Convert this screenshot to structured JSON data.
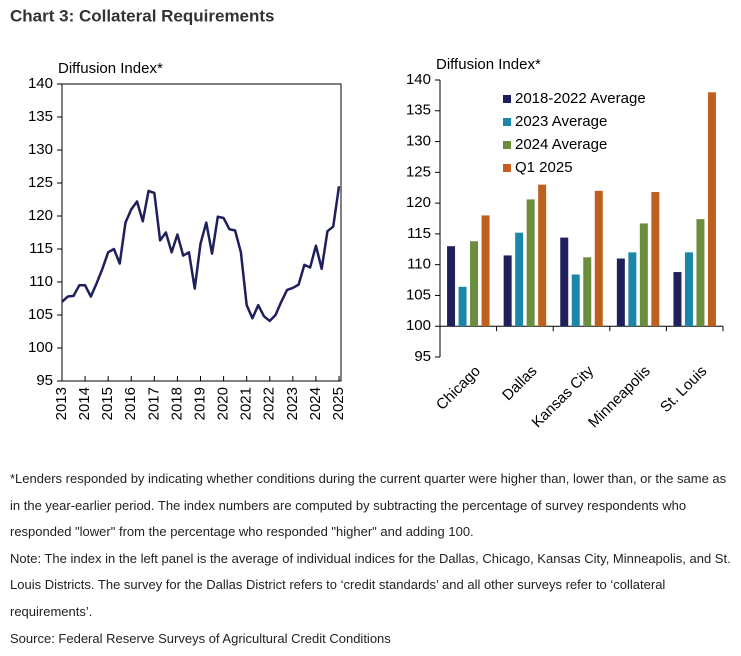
{
  "title": "Chart 3: Collateral Requirements",
  "chart_data": [
    {
      "type": "line",
      "ylabel": "Diffusion Index*",
      "color": "#1f1f5c",
      "x": [
        2013,
        2013.25,
        2013.5,
        2013.75,
        2014,
        2014.25,
        2014.5,
        2014.75,
        2015,
        2015.25,
        2015.5,
        2015.75,
        2016,
        2016.25,
        2016.5,
        2016.75,
        2017,
        2017.25,
        2017.5,
        2017.75,
        2018,
        2018.25,
        2018.5,
        2018.75,
        2019,
        2019.25,
        2019.5,
        2019.75,
        2020,
        2020.25,
        2020.5,
        2020.75,
        2021,
        2021.25,
        2021.5,
        2021.75,
        2022,
        2022.25,
        2022.5,
        2022.75,
        2023,
        2023.25,
        2023.5,
        2023.75,
        2024,
        2024.25,
        2024.5,
        2024.75,
        2025
      ],
      "values": [
        107.0,
        107.8,
        107.9,
        109.5,
        109.5,
        107.8,
        109.8,
        112.0,
        114.5,
        115.0,
        112.8,
        119.0,
        121.0,
        122.2,
        119.2,
        123.8,
        123.5,
        116.3,
        117.5,
        114.5,
        117.2,
        114.0,
        114.5,
        109.0,
        115.8,
        119.0,
        114.3,
        119.9,
        119.7,
        118.0,
        117.8,
        114.5,
        106.5,
        104.5,
        106.5,
        104.8,
        104.1,
        105.0,
        107.0,
        108.8,
        109.1,
        109.6,
        112.6,
        112.2,
        115.5,
        112.0,
        117.7,
        118.4,
        124.5
      ],
      "xlim": [
        2013,
        2025
      ],
      "xticks": [
        2013,
        2014,
        2015,
        2016,
        2017,
        2018,
        2019,
        2020,
        2021,
        2022,
        2023,
        2024,
        2025
      ],
      "ylim": [
        95,
        140
      ],
      "yticks": [
        95,
        100,
        105,
        110,
        115,
        120,
        125,
        130,
        135,
        140
      ]
    },
    {
      "type": "bar",
      "ylabel": "Diffusion Index*",
      "baseline": 100,
      "categories": [
        "Chicago",
        "Dallas",
        "Kansas City",
        "Minneapolis",
        "St. Louis"
      ],
      "series": [
        {
          "name": "2018-2022 Average",
          "color": "#1f1f5c",
          "values": [
            113.0,
            111.5,
            114.4,
            111.0,
            108.8
          ]
        },
        {
          "name": "2023 Average",
          "color": "#1b87a8",
          "values": [
            106.4,
            115.2,
            108.4,
            112.0,
            112.0
          ]
        },
        {
          "name": "2024 Average",
          "color": "#6b8e3e",
          "values": [
            113.8,
            120.6,
            111.2,
            116.7,
            117.4
          ]
        },
        {
          "name": "Q1 2025",
          "color": "#c0601e",
          "values": [
            118.0,
            123.0,
            122.0,
            121.8,
            138.0
          ]
        }
      ],
      "ylim": [
        95,
        140
      ],
      "yticks": [
        95,
        100,
        105,
        110,
        115,
        120,
        125,
        130,
        135,
        140
      ]
    }
  ],
  "notes": [
    "*Lenders responded by indicating whether conditions during the current quarter were higher than, lower than, or the same as in the year-earlier period. The index numbers are computed by subtracting the percentage of survey respondents who responded \"lower\" from the percentage who responded \"higher\" and adding 100.",
    "Note: The index in the left panel is the average of individual indices for the Dallas, Chicago, Kansas City, Minneapolis, and St. Louis Districts. The survey for the Dallas District refers to ‘credit standards’ and all other surveys refer to ‘collateral requirements’.",
    "Source: Federal Reserve Surveys of Agricultural Credit Conditions"
  ]
}
